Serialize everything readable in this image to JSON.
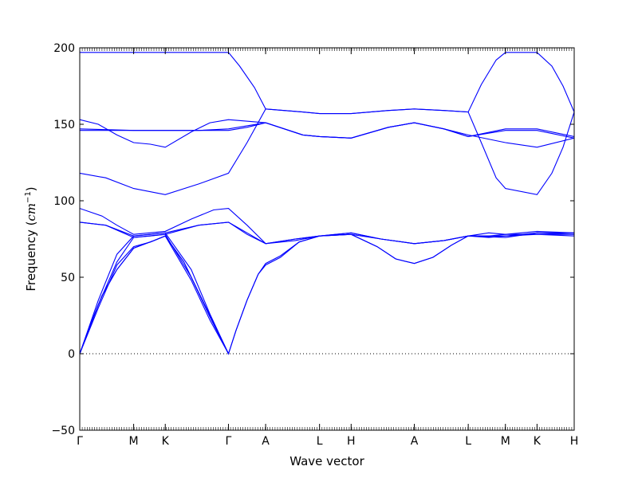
{
  "chart_data": {
    "type": "line",
    "title": "",
    "xlabel": "Wave vector",
    "ylabel": "Frequency (",
    "ylabel_unit_base": "cm",
    "ylabel_unit_exp": "−1",
    "ylabel_close": ")",
    "ylim": [
      -50,
      200
    ],
    "yticks": [
      -50,
      0,
      50,
      100,
      150,
      200
    ],
    "xlim": [
      0,
      13.3
    ],
    "xticks": [
      {
        "x": 0,
        "label": "Γ"
      },
      {
        "x": 1.45,
        "label": "M"
      },
      {
        "x": 2.3,
        "label": "K"
      },
      {
        "x": 4.0,
        "label": "Γ"
      },
      {
        "x": 5.0,
        "label": "A"
      },
      {
        "x": 6.45,
        "label": "L"
      },
      {
        "x": 7.3,
        "label": "H"
      },
      {
        "x": 9.0,
        "label": "A"
      },
      {
        "x": 10.45,
        "label": "L"
      },
      {
        "x": 11.45,
        "label": "M"
      },
      {
        "x": 12.3,
        "label": "K"
      },
      {
        "x": 13.3,
        "label": "H"
      }
    ],
    "zero_line": true,
    "grid": false,
    "line_color": "#0000ff",
    "series": [
      {
        "values": [
          [
            0,
            0
          ],
          [
            0.5,
            30
          ],
          [
            1.0,
            58
          ],
          [
            1.45,
            70
          ],
          [
            1.9,
            73
          ],
          [
            2.3,
            77
          ],
          [
            3.0,
            48
          ],
          [
            3.5,
            22
          ],
          [
            4.0,
            0
          ]
        ]
      },
      {
        "values": [
          [
            0,
            0
          ],
          [
            0.5,
            32
          ],
          [
            1.0,
            60
          ],
          [
            1.45,
            76
          ],
          [
            1.9,
            77
          ],
          [
            2.3,
            78
          ],
          [
            3.0,
            50
          ],
          [
            3.5,
            24
          ],
          [
            4.0,
            0
          ]
        ]
      },
      {
        "values": [
          [
            0,
            0
          ],
          [
            0.5,
            35
          ],
          [
            1.0,
            65
          ],
          [
            1.45,
            77
          ],
          [
            1.9,
            78
          ],
          [
            2.3,
            79
          ],
          [
            3.0,
            55
          ],
          [
            3.5,
            26
          ],
          [
            4.0,
            0
          ]
        ]
      },
      {
        "values": [
          [
            0,
            86
          ],
          [
            0.7,
            84
          ],
          [
            1.45,
            77
          ],
          [
            2.3,
            79
          ],
          [
            3.2,
            84
          ],
          [
            4.0,
            86
          ],
          [
            4.5,
            78
          ],
          [
            5.0,
            72
          ],
          [
            5.8,
            74
          ],
          [
            6.45,
            77
          ],
          [
            7.3,
            79
          ],
          [
            8.1,
            75
          ],
          [
            9.0,
            72
          ],
          [
            9.8,
            74
          ],
          [
            10.45,
            77
          ],
          [
            11.45,
            77
          ],
          [
            12.3,
            79
          ],
          [
            13.3,
            79
          ]
        ]
      },
      {
        "values": [
          [
            0,
            86
          ],
          [
            0.7,
            84
          ],
          [
            1.45,
            76
          ],
          [
            2.3,
            78
          ],
          [
            3.2,
            84
          ],
          [
            4.0,
            86
          ],
          [
            4.5,
            79
          ],
          [
            5.0,
            72
          ],
          [
            5.8,
            75
          ],
          [
            6.45,
            77
          ],
          [
            7.3,
            78
          ],
          [
            8.1,
            75
          ],
          [
            9.0,
            72
          ],
          [
            9.8,
            74
          ],
          [
            10.45,
            77
          ],
          [
            11.45,
            76
          ],
          [
            12.3,
            79
          ],
          [
            13.3,
            78
          ]
        ]
      },
      {
        "values": [
          [
            0,
            0
          ],
          [
            0.3,
            20
          ],
          [
            0.6,
            38
          ],
          [
            1.0,
            55
          ],
          [
            1.45,
            69
          ],
          [
            2.0,
            74
          ],
          [
            2.3,
            77
          ],
          [
            2.8,
            60
          ],
          [
            3.3,
            35
          ],
          [
            3.7,
            15
          ],
          [
            4.0,
            0
          ],
          [
            4.2,
            15
          ],
          [
            4.5,
            35
          ],
          [
            4.8,
            52
          ],
          [
            5.0,
            58
          ],
          [
            5.4,
            63
          ],
          [
            5.9,
            73
          ],
          [
            6.45,
            77
          ],
          [
            7.3,
            78
          ],
          [
            8.0,
            70
          ],
          [
            8.5,
            62
          ],
          [
            9.0,
            59
          ],
          [
            9.5,
            63
          ],
          [
            10.0,
            71
          ],
          [
            10.45,
            77
          ],
          [
            11.0,
            77
          ],
          [
            11.45,
            78
          ],
          [
            12.3,
            78
          ],
          [
            13.3,
            78
          ]
        ]
      },
      {
        "values": [
          [
            0,
            0
          ],
          [
            0.3,
            20
          ],
          [
            0.6,
            38
          ],
          [
            1.0,
            55
          ],
          [
            1.45,
            69
          ],
          [
            2.0,
            74
          ],
          [
            2.3,
            77
          ],
          [
            2.8,
            60
          ],
          [
            3.3,
            35
          ],
          [
            3.7,
            15
          ],
          [
            4.0,
            0
          ],
          [
            4.2,
            15
          ],
          [
            4.5,
            35
          ],
          [
            4.8,
            52
          ],
          [
            5.0,
            59
          ],
          [
            5.4,
            64
          ],
          [
            5.9,
            73
          ],
          [
            6.45,
            77
          ],
          [
            7.3,
            78
          ],
          [
            8.0,
            70
          ],
          [
            8.5,
            62
          ],
          [
            9.0,
            59
          ],
          [
            9.5,
            63
          ],
          [
            10.0,
            71
          ],
          [
            10.45,
            77
          ],
          [
            11.0,
            76
          ],
          [
            11.45,
            77
          ],
          [
            12.3,
            78
          ],
          [
            13.3,
            77
          ]
        ]
      },
      {
        "values": [
          [
            0,
            95
          ],
          [
            0.6,
            90
          ],
          [
            1.0,
            84
          ],
          [
            1.45,
            78
          ],
          [
            2.3,
            80
          ],
          [
            3.0,
            88
          ],
          [
            3.6,
            94
          ],
          [
            4.0,
            95
          ],
          [
            4.5,
            84
          ],
          [
            5.0,
            72
          ],
          [
            5.8,
            75
          ],
          [
            6.45,
            77
          ],
          [
            7.3,
            79
          ],
          [
            8.1,
            75
          ],
          [
            9.0,
            72
          ],
          [
            9.8,
            74
          ],
          [
            10.45,
            77
          ],
          [
            11.0,
            79
          ],
          [
            11.45,
            78
          ],
          [
            12.3,
            80
          ],
          [
            13.3,
            79
          ]
        ]
      },
      {
        "values": [
          [
            0,
            118
          ],
          [
            0.7,
            115
          ],
          [
            1.45,
            108
          ],
          [
            2.3,
            104
          ],
          [
            3.2,
            111
          ],
          [
            4.0,
            118
          ],
          [
            4.5,
            138
          ],
          [
            5.0,
            160
          ],
          [
            6.0,
            158
          ],
          [
            6.45,
            157
          ],
          [
            7.3,
            157
          ],
          [
            8.3,
            159
          ],
          [
            9.0,
            160
          ],
          [
            9.8,
            159
          ],
          [
            10.45,
            158
          ],
          [
            10.8,
            138
          ],
          [
            11.2,
            115
          ],
          [
            11.45,
            108
          ],
          [
            12.3,
            104
          ],
          [
            12.7,
            118
          ],
          [
            13.0,
            135
          ],
          [
            13.3,
            158
          ]
        ]
      },
      {
        "values": [
          [
            0,
            153
          ],
          [
            0.5,
            150
          ],
          [
            1.0,
            143
          ],
          [
            1.45,
            138
          ],
          [
            1.9,
            137
          ],
          [
            2.3,
            135
          ],
          [
            3.0,
            145
          ],
          [
            3.5,
            151
          ],
          [
            4.0,
            153
          ],
          [
            5.0,
            151
          ],
          [
            6.0,
            143
          ],
          [
            6.45,
            142
          ],
          [
            7.3,
            141
          ],
          [
            8.3,
            148
          ],
          [
            9.0,
            151
          ],
          [
            9.8,
            147
          ],
          [
            10.45,
            143
          ],
          [
            11.45,
            138
          ],
          [
            12.3,
            135
          ],
          [
            13.3,
            141
          ]
        ]
      },
      {
        "values": [
          [
            0,
            147
          ],
          [
            1.45,
            146
          ],
          [
            2.3,
            146
          ],
          [
            3.2,
            146
          ],
          [
            4.0,
            147
          ],
          [
            4.5,
            149
          ],
          [
            5.0,
            151
          ],
          [
            6.0,
            143
          ],
          [
            6.45,
            142
          ],
          [
            7.3,
            141
          ],
          [
            8.3,
            148
          ],
          [
            9.0,
            151
          ],
          [
            9.8,
            147
          ],
          [
            10.45,
            142
          ],
          [
            11.45,
            147
          ],
          [
            12.3,
            147
          ],
          [
            13.3,
            142
          ]
        ]
      },
      {
        "values": [
          [
            0,
            146
          ],
          [
            1.45,
            146
          ],
          [
            2.3,
            146
          ],
          [
            3.2,
            146
          ],
          [
            4.0,
            146
          ],
          [
            4.5,
            148
          ],
          [
            5.0,
            151
          ],
          [
            6.0,
            143
          ],
          [
            6.45,
            142
          ],
          [
            7.3,
            141
          ],
          [
            8.3,
            148
          ],
          [
            9.0,
            151
          ],
          [
            9.8,
            147
          ],
          [
            10.45,
            142
          ],
          [
            11.45,
            146
          ],
          [
            12.3,
            146
          ],
          [
            13.3,
            141
          ]
        ]
      },
      {
        "values": [
          [
            0,
            197
          ],
          [
            4.0,
            197
          ],
          [
            4.3,
            188
          ],
          [
            4.7,
            174
          ],
          [
            5.0,
            160
          ],
          [
            6.0,
            158
          ],
          [
            6.45,
            157
          ],
          [
            7.3,
            157
          ],
          [
            8.3,
            159
          ],
          [
            9.0,
            160
          ],
          [
            9.8,
            159
          ],
          [
            10.45,
            158
          ],
          [
            10.8,
            176
          ],
          [
            11.2,
            192
          ],
          [
            11.45,
            197
          ],
          [
            12.3,
            197
          ],
          [
            12.7,
            188
          ],
          [
            13.0,
            175
          ],
          [
            13.3,
            158
          ]
        ]
      }
    ]
  }
}
